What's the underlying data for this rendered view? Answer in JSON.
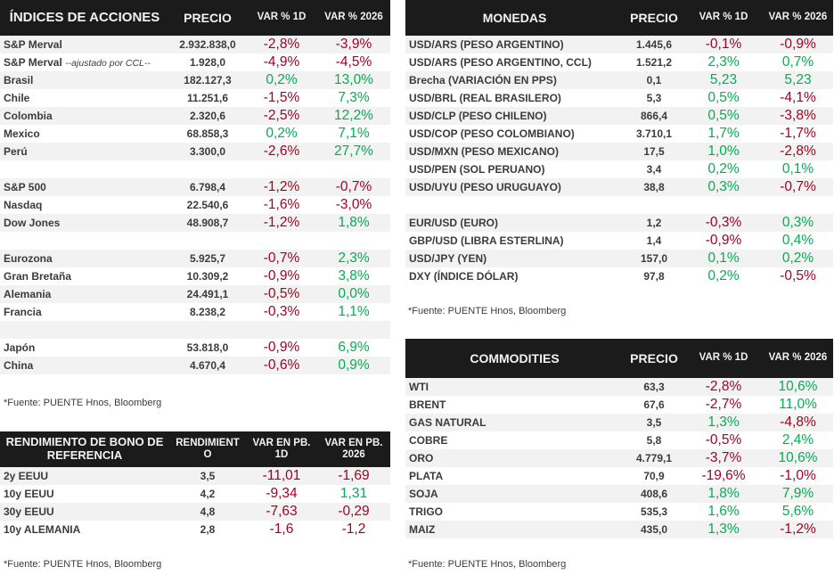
{
  "indices": {
    "headers": [
      "ÍNDICES DE ACCIONES",
      "PRECIO",
      "VAR % 1D",
      "VAR % 2026"
    ],
    "rows": [
      {
        "name": "S&P Merval",
        "price": "2.932.838,0",
        "d1": "-2,8%",
        "ytd": "-3,9%"
      },
      {
        "name": "S&P Merval",
        "note": "--ajustado por CCL--",
        "price": "1.928,0",
        "d1": "-4,9%",
        "ytd": "-4,5%"
      },
      {
        "name": "Brasil",
        "price": "182.127,3",
        "d1": "0,2%",
        "ytd": "13,0%"
      },
      {
        "name": "Chile",
        "price": "11.251,6",
        "d1": "-1,5%",
        "ytd": "7,3%"
      },
      {
        "name": "Colombia",
        "price": "2.320,6",
        "d1": "-2,5%",
        "ytd": "12,2%"
      },
      {
        "name": "Mexico",
        "price": "68.858,3",
        "d1": "0,2%",
        "ytd": "7,1%"
      },
      {
        "name": "Perú",
        "price": "3.300,0",
        "d1": "-2,6%",
        "ytd": "27,7%"
      },
      null,
      {
        "name": "S&P 500",
        "price": "6.798,4",
        "d1": "-1,2%",
        "ytd": "-0,7%"
      },
      {
        "name": "Nasdaq",
        "price": "22.540,6",
        "d1": "-1,6%",
        "ytd": "-3,0%"
      },
      {
        "name": "Dow Jones",
        "price": "48.908,7",
        "d1": "-1,2%",
        "ytd": "1,8%"
      },
      null,
      {
        "name": "Eurozona",
        "price": "5.925,7",
        "d1": "-0,7%",
        "ytd": "2,3%"
      },
      {
        "name": "Gran Bretaña",
        "price": "10.309,2",
        "d1": "-0,9%",
        "ytd": "3,8%"
      },
      {
        "name": "Alemania",
        "price": "24.491,1",
        "d1": "-0,5%",
        "ytd": "0,0%"
      },
      {
        "name": "Francia",
        "price": "8.238,2",
        "d1": "-0,3%",
        "ytd": "1,1%"
      },
      null,
      {
        "name": "Japón",
        "price": "53.818,0",
        "d1": "-0,9%",
        "ytd": "6,9%"
      },
      {
        "name": "China",
        "price": "4.670,4",
        "d1": "-0,6%",
        "ytd": "0,9%"
      }
    ],
    "source": "*Fuente: PUENTE Hnos, Bloomberg"
  },
  "bonos": {
    "headers": [
      "RENDIMIENTO DE BONO DE REFERENCIA",
      "RENDIMIENT O",
      "VAR EN PB. 1D",
      "VAR EN PB. 2026"
    ],
    "rows": [
      {
        "name": "2y EEUU",
        "price": "3,5",
        "d1": "-11,01",
        "ytd": "-1,69"
      },
      {
        "name": "10y EEUU",
        "price": "4,2",
        "d1": "-9,34",
        "ytd": "1,31"
      },
      {
        "name": "30y EEUU",
        "price": "4,8",
        "d1": "-7,63",
        "ytd": "-0,29"
      },
      {
        "name": "10y ALEMANIA",
        "price": "2,8",
        "d1": "-1,6",
        "ytd": "-1,2"
      }
    ],
    "source": "*Fuente: PUENTE Hnos, Bloomberg"
  },
  "monedas": {
    "headers": [
      "MONEDAS",
      "PRECIO",
      "VAR % 1D",
      "VAR % 2026"
    ],
    "rows": [
      {
        "name": "USD/ARS (PESO ARGENTINO)",
        "price": "1.445,6",
        "d1": "-0,1%",
        "ytd": "-0,9%"
      },
      {
        "name": "USD/ARS (PESO ARGENTINO, CCL)",
        "price": "1.521,2",
        "d1": "2,3%",
        "ytd": "0,7%"
      },
      {
        "name": "Brecha (VARIACIÓN EN PPS)",
        "price": "0,1",
        "d1": "5,23",
        "ytd": "5,23"
      },
      {
        "name": "USD/BRL (REAL BRASILERO)",
        "price": "5,3",
        "d1": "0,5%",
        "ytd": "-4,1%"
      },
      {
        "name": "USD/CLP (PESO CHILENO)",
        "price": "866,4",
        "d1": "0,5%",
        "ytd": "-3,8%"
      },
      {
        "name": "USD/COP (PESO COLOMBIANO)",
        "price": "3.710,1",
        "d1": "1,7%",
        "ytd": "-1,7%"
      },
      {
        "name": "USD/MXN (PESO MEXICANO)",
        "price": "17,5",
        "d1": "1,0%",
        "ytd": "-2,8%"
      },
      {
        "name": "USD/PEN (SOL PERUANO)",
        "price": "3,4",
        "d1": "0,2%",
        "ytd": "0,1%"
      },
      {
        "name": "USD/UYU (PESO URUGUAYO)",
        "price": "38,8",
        "d1": "0,3%",
        "ytd": "-0,7%"
      },
      null,
      {
        "name": "EUR/USD (EURO)",
        "price": "1,2",
        "d1": "-0,3%",
        "ytd": "0,3%"
      },
      {
        "name": "GBP/USD (LIBRA ESTERLINA)",
        "price": "1,4",
        "d1": "-0,9%",
        "ytd": "0,4%"
      },
      {
        "name": "USD/JPY (YEN)",
        "price": "157,0",
        "d1": "0,1%",
        "ytd": "0,2%"
      },
      {
        "name": "DXY (ÍNDICE DÓLAR)",
        "price": "97,8",
        "d1": "0,2%",
        "ytd": "-0,5%"
      }
    ],
    "source": "*Fuente: PUENTE Hnos, Bloomberg"
  },
  "commodities": {
    "headers": [
      "COMMODITIES",
      "PRECIO",
      "VAR % 1D",
      "VAR % 2026"
    ],
    "rows": [
      {
        "name": "WTI",
        "price": "63,3",
        "d1": "-2,8%",
        "ytd": "10,6%"
      },
      {
        "name": "BRENT",
        "price": "67,6",
        "d1": "-2,7%",
        "ytd": "11,0%"
      },
      {
        "name": "GAS NATURAL",
        "price": "3,5",
        "d1": "1,3%",
        "ytd": "-4,8%"
      },
      {
        "name": "COBRE",
        "price": "5,8",
        "d1": "-0,5%",
        "ytd": "2,4%"
      },
      {
        "name": "ORO",
        "price": "4.779,1",
        "d1": "-3,7%",
        "ytd": "10,6%"
      },
      {
        "name": "PLATA",
        "price": "70,9",
        "d1": "-19,6%",
        "ytd": "-1,0%"
      },
      {
        "name": "SOJA",
        "price": "408,6",
        "d1": "1,8%",
        "ytd": "7,9%"
      },
      {
        "name": "TRIGO",
        "price": "535,3",
        "d1": "1,6%",
        "ytd": "5,6%"
      },
      {
        "name": "MAIZ",
        "price": "435,0",
        "d1": "1,3%",
        "ytd": "-1,2%"
      }
    ],
    "source": "*Fuente: PUENTE Hnos, Bloomberg"
  },
  "colors": {
    "negative": "#a50021",
    "positive": "#00b050",
    "header_bg": "#1b1b1b"
  }
}
